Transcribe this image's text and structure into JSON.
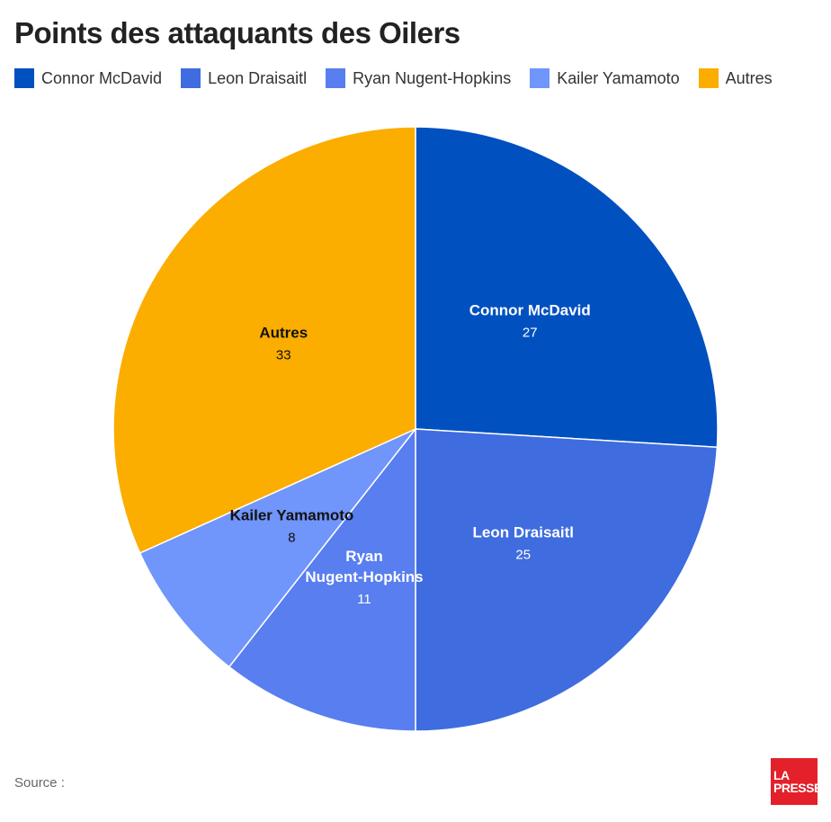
{
  "title": "Points des attaquants des Oilers",
  "source_label": "Source :",
  "logo": {
    "line1": "LA",
    "line2": "PRESSE"
  },
  "label_colors": {
    "light": "#ffffff",
    "dark": "#111111"
  },
  "chart_data": {
    "type": "pie",
    "title": "Points des attaquants des Oilers",
    "legend_position": "top",
    "start_angle_deg": 0,
    "direction": "clockwise",
    "slices": [
      {
        "label": "Connor McDavid",
        "label_lines": [
          "Connor McDavid"
        ],
        "value": 27,
        "color": "#0150c0"
      },
      {
        "label": "Leon Draisaitl",
        "label_lines": [
          "Leon Draisaitl"
        ],
        "value": 25,
        "color": "#3f6cde"
      },
      {
        "label": "Ryan Nugent-Hopkins",
        "label_lines": [
          "Ryan",
          "Nugent-Hopkins"
        ],
        "value": 11,
        "color": "#587ef0"
      },
      {
        "label": "Kailer Yamamoto",
        "label_lines": [
          "Kailer Yamamoto"
        ],
        "value": 8,
        "color": "#7095fb"
      },
      {
        "label": "Autres",
        "label_lines": [
          "Autres"
        ],
        "value": 33,
        "color": "#fbad00"
      }
    ]
  }
}
